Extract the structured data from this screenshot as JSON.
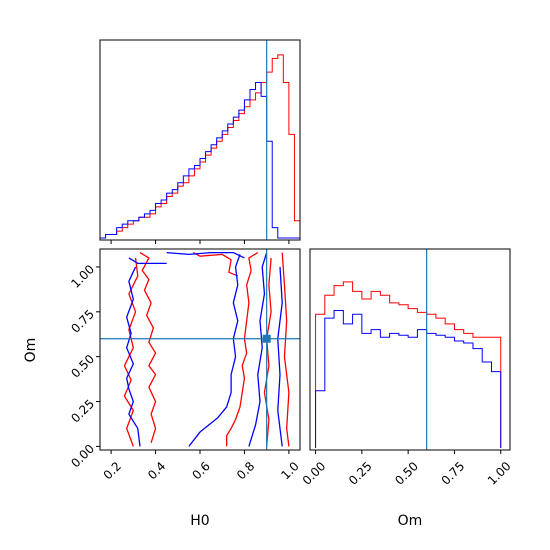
{
  "chart_data": {
    "type": "corner",
    "truth": {
      "H0": 0.9,
      "Om": 0.6,
      "color": "#1f77b4"
    },
    "colors": {
      "red": "#ff0000",
      "blue": "#0000ff",
      "truth": "#1f77b4"
    },
    "panels": [
      {
        "id": "hist-H0",
        "type": "histogram-step",
        "xlim": [
          0.15,
          1.05
        ],
        "xticks": [
          0.2,
          0.4,
          0.6,
          0.8,
          1.0
        ],
        "edges": [
          0.15,
          0.175,
          0.2,
          0.225,
          0.25,
          0.275,
          0.3,
          0.325,
          0.35,
          0.375,
          0.4,
          0.425,
          0.45,
          0.475,
          0.5,
          0.525,
          0.55,
          0.575,
          0.6,
          0.625,
          0.65,
          0.675,
          0.7,
          0.725,
          0.75,
          0.775,
          0.8,
          0.825,
          0.85,
          0.875,
          0.9,
          0.925,
          0.95,
          0.975,
          1.0,
          1.025,
          1.05
        ],
        "series": [
          {
            "color": "red",
            "counts": [
              0,
              1,
              1,
              2,
              3,
              4,
              5,
              6,
              6,
              7,
              9,
              10,
              12,
              13,
              15,
              16,
              18,
              20,
              22,
              24,
              26,
              28,
              30,
              32,
              34,
              36,
              38,
              40,
              42,
              45,
              48,
              52,
              53,
              45,
              30,
              5
            ]
          },
          {
            "color": "blue",
            "counts": [
              0,
              1,
              1,
              3,
              4,
              5,
              5,
              6,
              7,
              8,
              10,
              11,
              13,
              14,
              16,
              18,
              20,
              21,
              23,
              25,
              27,
              29,
              31,
              33,
              35,
              37,
              40,
              43,
              45,
              41,
              28,
              3,
              0,
              0,
              0,
              0
            ]
          }
        ],
        "ymax": 55
      },
      {
        "id": "hist-Om",
        "type": "histogram-step",
        "xlabel": "Om",
        "xlim": [
          -0.03,
          1.05
        ],
        "xticks": [
          0.0,
          0.25,
          0.5,
          0.75,
          1.0
        ],
        "xtick_labels": [
          "0.00",
          "0.25",
          "0.50",
          "0.75",
          "1.00"
        ],
        "edges": [
          0.0,
          0.05,
          0.1,
          0.15,
          0.2,
          0.25,
          0.3,
          0.35,
          0.4,
          0.45,
          0.5,
          0.55,
          0.6,
          0.65,
          0.7,
          0.75,
          0.8,
          0.85,
          0.9,
          0.95,
          1.0
        ],
        "series": [
          {
            "color": "red",
            "counts": [
              70,
              80,
              85,
              87,
              82,
              78,
              82,
              80,
              76,
              75,
              73,
              71,
              70,
              68,
              65,
              62,
              60,
              58,
              58,
              58
            ]
          },
          {
            "color": "blue",
            "counts": [
              30,
              68,
              72,
              65,
              70,
              60,
              62,
              58,
              60,
              59,
              58,
              62,
              60,
              59,
              58,
              56,
              55,
              52,
              45,
              40
            ]
          }
        ],
        "ymax": 100
      },
      {
        "id": "contour-H0-Om",
        "type": "contour",
        "xlabel": "H0",
        "ylabel": "Om",
        "xlim": [
          0.15,
          1.05
        ],
        "ylim": [
          -0.02,
          1.1
        ],
        "xticks": [
          0.2,
          0.4,
          0.6,
          0.8,
          1.0
        ],
        "xtick_labels": [
          "0.2",
          "0.4",
          "0.6",
          "0.8",
          "1.0"
        ],
        "yticks": [
          0.0,
          0.25,
          0.5,
          0.75,
          1.0
        ],
        "ytick_labels": [
          "0.00",
          "0.25",
          "0.50",
          "0.75",
          "1.00"
        ],
        "contours": [
          {
            "color": "red",
            "points": [
              [
                0.33,
                1.08
              ],
              [
                0.37,
                1.05
              ],
              [
                0.34,
                0.98
              ],
              [
                0.37,
                0.93
              ],
              [
                0.35,
                0.87
              ],
              [
                0.38,
                0.8
              ],
              [
                0.36,
                0.73
              ],
              [
                0.39,
                0.66
              ],
              [
                0.37,
                0.58
              ],
              [
                0.4,
                0.52
              ],
              [
                0.37,
                0.45
              ],
              [
                0.4,
                0.4
              ],
              [
                0.37,
                0.33
              ],
              [
                0.4,
                0.25
              ],
              [
                0.38,
                0.18
              ],
              [
                0.4,
                0.1
              ],
              [
                0.38,
                0.02
              ]
            ]
          },
          {
            "color": "red",
            "points": [
              [
                0.3,
                0.0
              ],
              [
                0.27,
                0.1
              ],
              [
                0.3,
                0.2
              ],
              [
                0.26,
                0.28
              ],
              [
                0.29,
                0.37
              ],
              [
                0.26,
                0.45
              ],
              [
                0.3,
                0.55
              ],
              [
                0.28,
                0.65
              ],
              [
                0.31,
                0.75
              ],
              [
                0.28,
                0.85
              ],
              [
                0.32,
                0.95
              ],
              [
                0.31,
                1.05
              ]
            ]
          },
          {
            "color": "red",
            "points": [
              [
                0.57,
                1.08
              ],
              [
                0.6,
                1.06
              ],
              [
                0.7,
                1.07
              ],
              [
                0.74,
                1.04
              ],
              [
                0.73,
                0.97
              ],
              [
                0.77,
                0.95
              ]
            ]
          },
          {
            "color": "red",
            "points": [
              [
                0.72,
                0.0
              ],
              [
                0.72,
                0.06
              ],
              [
                0.74,
                0.1
              ],
              [
                0.76,
                0.15
              ],
              [
                0.78,
                0.22
              ],
              [
                0.79,
                0.3
              ],
              [
                0.8,
                0.38
              ],
              [
                0.79,
                0.45
              ],
              [
                0.81,
                0.52
              ],
              [
                0.8,
                0.6
              ],
              [
                0.81,
                0.7
              ],
              [
                0.82,
                0.8
              ],
              [
                0.81,
                0.9
              ],
              [
                0.83,
                0.98
              ],
              [
                0.82,
                1.05
              ],
              [
                0.86,
                1.08
              ]
            ]
          },
          {
            "color": "red",
            "points": [
              [
                0.97,
                1.08
              ],
              [
                0.98,
                0.9
              ],
              [
                0.99,
                0.7
              ],
              [
                0.98,
                0.5
              ],
              [
                1.0,
                0.3
              ],
              [
                0.99,
                0.1
              ],
              [
                1.0,
                0.0
              ]
            ]
          },
          {
            "color": "red",
            "points": [
              [
                0.9,
                0.0
              ],
              [
                0.91,
                0.15
              ],
              [
                0.89,
                0.3
              ],
              [
                0.91,
                0.45
              ],
              [
                0.9,
                0.6
              ],
              [
                0.92,
                0.75
              ],
              [
                0.91,
                0.9
              ],
              [
                0.92,
                1.05
              ]
            ]
          },
          {
            "color": "blue",
            "points": [
              [
                0.28,
                1.05
              ],
              [
                0.32,
                1.02
              ],
              [
                0.4,
                1.02
              ],
              [
                0.45,
                1.02
              ]
            ]
          },
          {
            "color": "blue",
            "points": [
              [
                0.33,
                0.0
              ],
              [
                0.32,
                0.1
              ],
              [
                0.28,
                0.18
              ],
              [
                0.3,
                0.25
              ],
              [
                0.28,
                0.32
              ],
              [
                0.27,
                0.38
              ],
              [
                0.3,
                0.46
              ],
              [
                0.27,
                0.55
              ],
              [
                0.29,
                0.63
              ],
              [
                0.27,
                0.72
              ],
              [
                0.3,
                0.82
              ],
              [
                0.28,
                0.92
              ],
              [
                0.31,
                1.0
              ]
            ]
          },
          {
            "color": "blue",
            "points": [
              [
                0.45,
                1.08
              ],
              [
                0.55,
                1.07
              ],
              [
                0.65,
                1.08
              ],
              [
                0.75,
                1.08
              ],
              [
                0.8,
                1.05
              ]
            ]
          },
          {
            "color": "blue",
            "points": [
              [
                0.55,
                0.0
              ],
              [
                0.6,
                0.08
              ],
              [
                0.64,
                0.12
              ],
              [
                0.68,
                0.16
              ],
              [
                0.72,
                0.22
              ],
              [
                0.74,
                0.3
              ],
              [
                0.74,
                0.4
              ],
              [
                0.76,
                0.5
              ],
              [
                0.75,
                0.6
              ],
              [
                0.77,
                0.7
              ],
              [
                0.75,
                0.8
              ],
              [
                0.77,
                0.9
              ],
              [
                0.76,
                1.0
              ],
              [
                0.78,
                1.07
              ]
            ]
          },
          {
            "color": "blue",
            "points": [
              [
                0.82,
                0.0
              ],
              [
                0.85,
                0.12
              ],
              [
                0.87,
                0.25
              ],
              [
                0.86,
                0.4
              ],
              [
                0.88,
                0.55
              ],
              [
                0.87,
                0.7
              ],
              [
                0.89,
                0.85
              ],
              [
                0.88,
                1.0
              ],
              [
                0.9,
                1.08
              ]
            ]
          },
          {
            "color": "blue",
            "points": [
              [
                0.97,
                0.0
              ],
              [
                0.95,
                0.2
              ],
              [
                0.96,
                0.4
              ],
              [
                0.95,
                0.6
              ],
              [
                0.97,
                0.8
              ],
              [
                0.96,
                1.0
              ]
            ]
          }
        ]
      }
    ]
  }
}
